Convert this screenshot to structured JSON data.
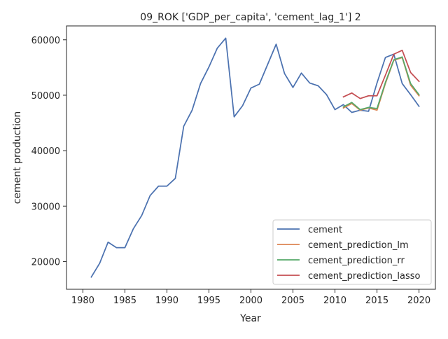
{
  "chart_data": {
    "type": "line",
    "title": "09_ROK ['GDP_per_capita', 'cement_lag_1'] 2",
    "xlabel": "Year",
    "ylabel": "cement production",
    "xlim": [
      1978.05,
      2021.95
    ],
    "ylim": [
      15000,
      62500
    ],
    "xticks": [
      1980,
      1985,
      1990,
      1995,
      2000,
      2005,
      2010,
      2015,
      2020
    ],
    "yticks": [
      20000,
      30000,
      40000,
      50000,
      60000
    ],
    "grid": false,
    "legend_position": "bottom-right",
    "series": [
      {
        "name": "cement",
        "color": "#4c72b0",
        "x": [
          1981,
          1982,
          1983,
          1984,
          1985,
          1986,
          1987,
          1988,
          1989,
          1990,
          1991,
          1992,
          1993,
          1994,
          1995,
          1996,
          1997,
          1998,
          1999,
          2000,
          2001,
          2002,
          2003,
          2004,
          2005,
          2006,
          2007,
          2008,
          2009,
          2010,
          2011,
          2012,
          2013,
          2014,
          2015,
          2016,
          2017,
          2018,
          2019,
          2020
        ],
        "values": [
          17200,
          19700,
          23500,
          22500,
          22500,
          25900,
          28300,
          31900,
          33600,
          33600,
          35000,
          44400,
          47300,
          52100,
          55100,
          58500,
          60300,
          46100,
          48100,
          51300,
          52000,
          55600,
          59200,
          53900,
          51400,
          54000,
          52200,
          51700,
          50100,
          47400,
          48300,
          46900,
          47300,
          47100,
          52200,
          56800,
          57400,
          52100,
          50100,
          48000
        ]
      },
      {
        "name": "cement_prediction_lm",
        "color": "#dd8452",
        "x": [
          2011,
          2012,
          2013,
          2014,
          2015,
          2016,
          2017,
          2018,
          2019,
          2020
        ],
        "values": [
          47700,
          48500,
          47300,
          47700,
          47300,
          52100,
          56300,
          56800,
          51800,
          49900
        ]
      },
      {
        "name": "cement_prediction_rr",
        "color": "#55a868",
        "x": [
          2011,
          2012,
          2013,
          2014,
          2015,
          2016,
          2017,
          2018,
          2019,
          2020
        ],
        "values": [
          47900,
          48700,
          47400,
          47800,
          47600,
          52300,
          56400,
          56900,
          52100,
          50100
        ]
      },
      {
        "name": "cement_prediction_lasso",
        "color": "#c44e52",
        "x": [
          2011,
          2012,
          2013,
          2014,
          2015,
          2016,
          2017,
          2018,
          2019,
          2020
        ],
        "values": [
          49700,
          50400,
          49400,
          49900,
          49900,
          53600,
          57400,
          58100,
          54100,
          52500
        ]
      }
    ]
  }
}
